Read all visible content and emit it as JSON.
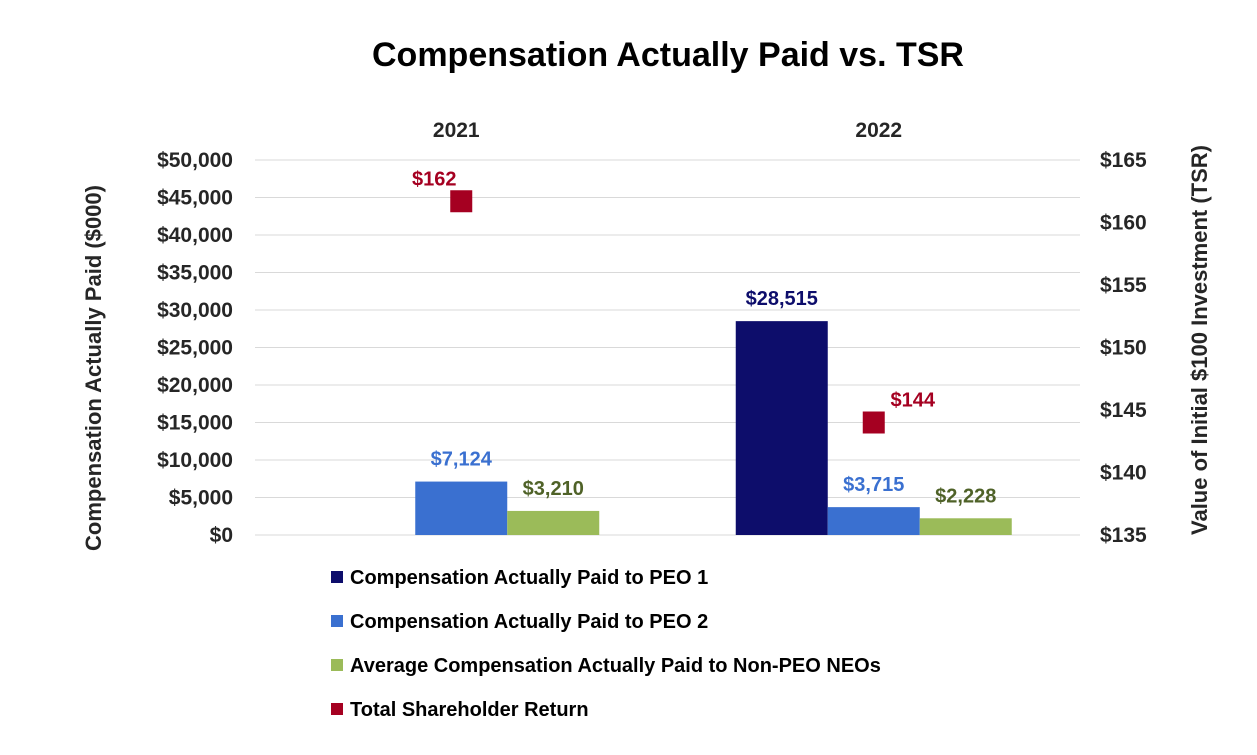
{
  "chart_data": {
    "type": "bar",
    "title": "Compensation Actually Paid vs. TSR",
    "categories": [
      "2021",
      "2022"
    ],
    "ylabel": "Compensation Actually Paid ($000)",
    "y2label": "Value of Initial $100 Investment (TSR)",
    "ylim": [
      0,
      50000
    ],
    "y2lim": [
      135,
      165
    ],
    "yticks": [
      "$0",
      "$5,000",
      "$10,000",
      "$15,000",
      "$20,000",
      "$25,000",
      "$30,000",
      "$35,000",
      "$40,000",
      "$45,000",
      "$50,000"
    ],
    "y2ticks": [
      "$135",
      "$140",
      "$145",
      "$150",
      "$155",
      "$160",
      "$165"
    ],
    "grid": true,
    "legend_position": "bottom",
    "series": [
      {
        "name": "Compensation Actually Paid to PEO 1",
        "type": "bar",
        "color": "#0d0d6b",
        "values": [
          null,
          28515
        ],
        "labels": [
          "",
          "$28,515"
        ]
      },
      {
        "name": "Compensation Actually Paid to PEO 2",
        "type": "bar",
        "color": "#3a70d0",
        "values": [
          7124,
          3715
        ],
        "labels": [
          "$7,124",
          "$3,715"
        ]
      },
      {
        "name": "Average Compensation Actually Paid to Non-PEO NEOs",
        "type": "bar",
        "color": "#9bbb59",
        "label_color": "#4f6228",
        "values": [
          3210,
          2228
        ],
        "labels": [
          "$3,210",
          "$2,228"
        ]
      },
      {
        "name": "Total Shareholder Return",
        "type": "marker",
        "axis": "secondary",
        "color": "#a50021",
        "values": [
          161.7,
          144.0
        ],
        "labels": [
          "$162",
          "$144"
        ]
      }
    ]
  }
}
